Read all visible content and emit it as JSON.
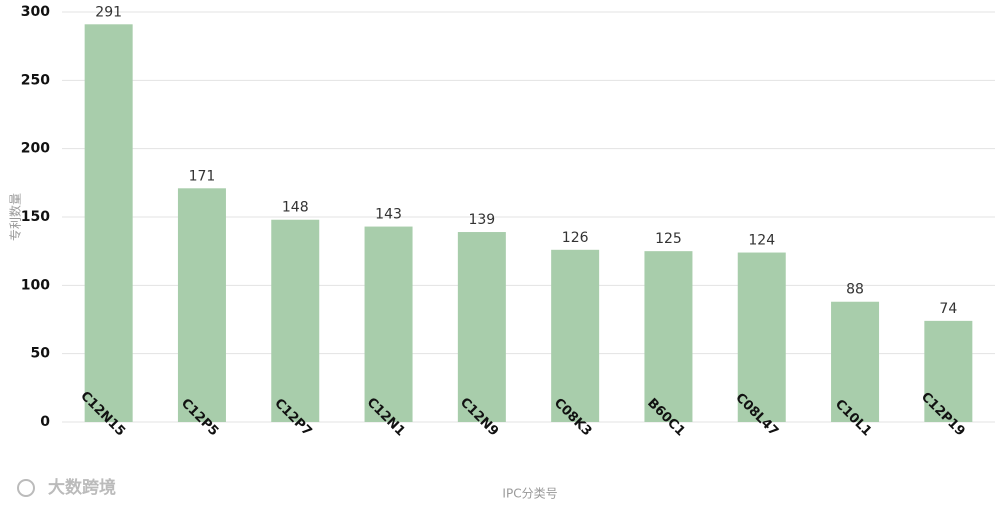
{
  "chart_data": {
    "type": "bar",
    "y_label": "专利数量",
    "x_label": "IPC分类号",
    "watermark": "大数跨境",
    "categories": [
      "C12N15",
      "C12P5",
      "C12P7",
      "C12N1",
      "C12N9",
      "C08K3",
      "B60C1",
      "C08L47",
      "C10L1",
      "C12P19"
    ],
    "values": [
      291,
      171,
      148,
      143,
      139,
      126,
      125,
      124,
      88,
      74
    ],
    "color": "#a8cdab",
    "ylim": [
      0,
      300
    ],
    "yticks": [
      0,
      50,
      100,
      150,
      200,
      250,
      300
    ],
    "grid": true
  }
}
